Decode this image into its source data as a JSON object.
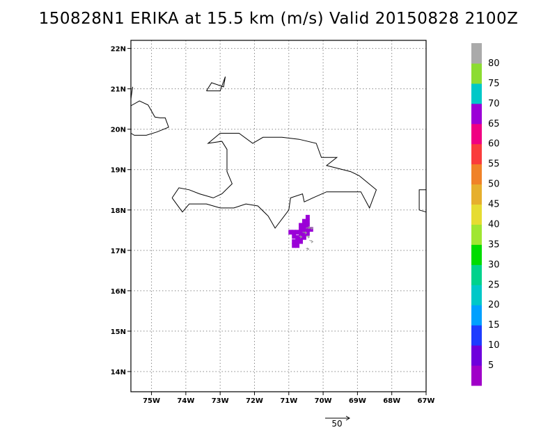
{
  "title": "150828N1 ERIKA at 15.5 km (m/s) Valid 20150828 2100Z",
  "map": {
    "lon_range": [
      -75.6,
      -67.0
    ],
    "lat_range": [
      13.5,
      22.2
    ],
    "lon_ticks": [
      {
        "value": -75,
        "label": "75W"
      },
      {
        "value": -74,
        "label": "74W"
      },
      {
        "value": -73,
        "label": "73W"
      },
      {
        "value": -72,
        "label": "72W"
      },
      {
        "value": -71,
        "label": "71W"
      },
      {
        "value": -70,
        "label": "70W"
      },
      {
        "value": -69,
        "label": "69W"
      },
      {
        "value": -68,
        "label": "68W"
      },
      {
        "value": -67,
        "label": "67W"
      }
    ],
    "lat_ticks": [
      {
        "value": 14,
        "label": "14N"
      },
      {
        "value": 15,
        "label": "15N"
      },
      {
        "value": 16,
        "label": "16N"
      },
      {
        "value": 17,
        "label": "17N"
      },
      {
        "value": 18,
        "label": "18N"
      },
      {
        "value": 19,
        "label": "19N"
      },
      {
        "value": 20,
        "label": "20N"
      },
      {
        "value": 21,
        "label": "21N"
      },
      {
        "value": 22,
        "label": "22N"
      }
    ],
    "grid": "dotted",
    "coastlines": [
      [
        [
          -75.6,
          20.58
        ],
        [
          -75.35,
          20.7
        ],
        [
          -75.1,
          20.6
        ],
        [
          -74.9,
          20.3
        ],
        [
          -74.75,
          20.28
        ],
        [
          -74.6,
          20.28
        ],
        [
          -74.5,
          20.05
        ],
        [
          -74.85,
          19.93
        ],
        [
          -75.15,
          19.85
        ],
        [
          -75.5,
          19.85
        ],
        [
          -75.6,
          19.9
        ]
      ],
      [
        [
          -75.55,
          21.05
        ],
        [
          -75.6,
          20.75
        ]
      ],
      [
        [
          -73.4,
          20.95
        ],
        [
          -73.25,
          21.15
        ],
        [
          -72.9,
          21.05
        ],
        [
          -72.85,
          21.3
        ],
        [
          -73.0,
          20.95
        ],
        [
          -73.4,
          20.95
        ]
      ],
      [
        [
          -74.4,
          18.3
        ],
        [
          -74.2,
          18.55
        ],
        [
          -73.9,
          18.5
        ],
        [
          -73.6,
          18.4
        ],
        [
          -73.2,
          18.3
        ],
        [
          -72.95,
          18.4
        ],
        [
          -72.65,
          18.65
        ],
        [
          -72.8,
          18.95
        ],
        [
          -72.8,
          19.5
        ],
        [
          -72.95,
          19.7
        ],
        [
          -73.35,
          19.65
        ],
        [
          -73.0,
          19.9
        ],
        [
          -72.45,
          19.9
        ],
        [
          -72.05,
          19.65
        ],
        [
          -71.75,
          19.8
        ],
        [
          -71.2,
          19.8
        ],
        [
          -70.7,
          19.75
        ],
        [
          -70.2,
          19.65
        ],
        [
          -70.05,
          19.3
        ],
        [
          -69.6,
          19.3
        ],
        [
          -69.9,
          19.1
        ],
        [
          -69.2,
          18.95
        ],
        [
          -68.95,
          18.85
        ],
        [
          -68.45,
          18.5
        ],
        [
          -68.65,
          18.05
        ],
        [
          -68.9,
          18.45
        ],
        [
          -69.35,
          18.45
        ],
        [
          -69.9,
          18.45
        ],
        [
          -70.3,
          18.3
        ],
        [
          -70.55,
          18.2
        ],
        [
          -70.6,
          18.4
        ],
        [
          -70.95,
          18.3
        ],
        [
          -71.0,
          18.0
        ],
        [
          -71.4,
          17.55
        ],
        [
          -71.6,
          17.85
        ],
        [
          -71.9,
          18.1
        ],
        [
          -72.25,
          18.15
        ],
        [
          -72.6,
          18.05
        ],
        [
          -73.0,
          18.05
        ],
        [
          -73.4,
          18.15
        ],
        [
          -73.9,
          18.15
        ],
        [
          -74.1,
          17.95
        ],
        [
          -74.4,
          18.3
        ]
      ],
      [
        [
          -67.0,
          18.5
        ],
        [
          -67.2,
          18.5
        ],
        [
          -67.2,
          18.0
        ],
        [
          -67.0,
          17.95
        ]
      ]
    ],
    "wind_cells": [
      {
        "lon": -70.45,
        "lat": 17.82,
        "color": "#9b00d7"
      },
      {
        "lon": -70.45,
        "lat": 17.72,
        "color": "#9b00d7"
      },
      {
        "lon": -70.55,
        "lat": 17.72,
        "color": "#9b00d7"
      },
      {
        "lon": -70.65,
        "lat": 17.62,
        "color": "#9b00d7"
      },
      {
        "lon": -70.55,
        "lat": 17.62,
        "color": "#9b00d7"
      },
      {
        "lon": -70.45,
        "lat": 17.62,
        "color": "#9b00d7"
      },
      {
        "lon": -70.35,
        "lat": 17.52,
        "color": "#9b00d7"
      },
      {
        "lon": -70.45,
        "lat": 17.52,
        "color": "#9b00d7"
      },
      {
        "lon": -70.55,
        "lat": 17.52,
        "color": "#9b00d7"
      },
      {
        "lon": -70.65,
        "lat": 17.52,
        "color": "#9b00d7"
      },
      {
        "lon": -70.85,
        "lat": 17.45,
        "color": "#9b00d7"
      },
      {
        "lon": -70.75,
        "lat": 17.45,
        "color": "#9b00d7"
      },
      {
        "lon": -70.95,
        "lat": 17.45,
        "color": "#9b00d7"
      },
      {
        "lon": -70.65,
        "lat": 17.42,
        "color": "#9b00d7"
      },
      {
        "lon": -70.55,
        "lat": 17.42,
        "color": "#9b00d7"
      },
      {
        "lon": -70.45,
        "lat": 17.42,
        "color": "#9b00d7"
      },
      {
        "lon": -70.85,
        "lat": 17.35,
        "color": "#9b00d7"
      },
      {
        "lon": -70.75,
        "lat": 17.32,
        "color": "#9b00d7"
      },
      {
        "lon": -70.65,
        "lat": 17.32,
        "color": "#9b00d7"
      },
      {
        "lon": -70.55,
        "lat": 17.32,
        "color": "#9b00d7"
      },
      {
        "lon": -70.85,
        "lat": 17.22,
        "color": "#9b00d7"
      },
      {
        "lon": -70.75,
        "lat": 17.22,
        "color": "#9b00d7"
      },
      {
        "lon": -70.65,
        "lat": 17.22,
        "color": "#9b00d7"
      },
      {
        "lon": -70.75,
        "lat": 17.12,
        "color": "#9b00d7"
      },
      {
        "lon": -70.85,
        "lat": 17.12,
        "color": "#9b00d7"
      }
    ],
    "wind_vectors": [
      {
        "lon": -70.5,
        "lat": 17.55,
        "u": 6,
        "v": 1
      },
      {
        "lon": -70.6,
        "lat": 17.45,
        "u": 6,
        "v": -1
      },
      {
        "lon": -70.4,
        "lat": 17.55,
        "u": 5,
        "v": 0
      },
      {
        "lon": -70.5,
        "lat": 17.35,
        "u": 5,
        "v": -1
      },
      {
        "lon": -70.4,
        "lat": 17.25,
        "u": 5,
        "v": -2
      },
      {
        "lon": -70.5,
        "lat": 17.05,
        "u": 4,
        "v": -1
      },
      {
        "lon": -70.7,
        "lat": 17.35,
        "u": 4,
        "v": -1
      }
    ]
  },
  "colorbar": {
    "labels": [
      "5",
      "10",
      "15",
      "20",
      "25",
      "30",
      "35",
      "40",
      "45",
      "50",
      "55",
      "60",
      "65",
      "70",
      "75",
      "80"
    ],
    "colors": [
      "#a000c8",
      "#6e00dc",
      "#1e3cff",
      "#00a0ff",
      "#00c8c8",
      "#00d28c",
      "#00dc00",
      "#a0e632",
      "#e6dc32",
      "#e6af2d",
      "#f08228",
      "#fa3c3c",
      "#f00082",
      "#9b00d7",
      "#00c8c8",
      "#8cdc32",
      "#aaaaaa"
    ]
  },
  "reference_vector": {
    "label": "50"
  }
}
